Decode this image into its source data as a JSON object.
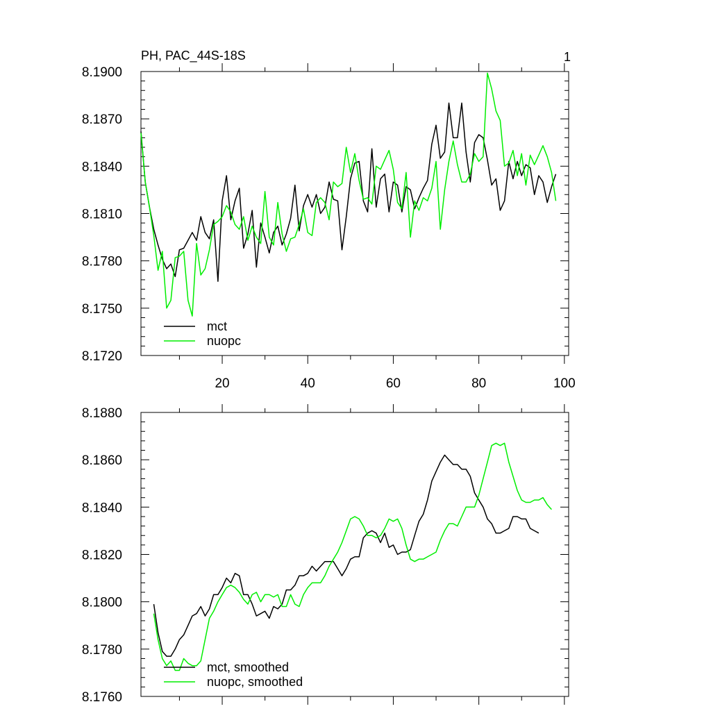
{
  "page": {
    "panel_number": "1"
  },
  "colors": {
    "mct": "#000000",
    "nuopc": "#00ee00",
    "axis": "#000000"
  },
  "chart_data": [
    {
      "type": "line",
      "title": "PH, PAC_44S-18S",
      "xlim": [
        1,
        101
      ],
      "ylim": [
        8.172,
        8.19
      ],
      "x_ticks": [
        20,
        40,
        60,
        80,
        100
      ],
      "y_ticks": [
        8.172,
        8.175,
        8.178,
        8.181,
        8.184,
        8.187,
        8.19
      ],
      "y_tick_labels": [
        "8.1720",
        "8.1750",
        "8.1780",
        "8.1810",
        "8.1840",
        "8.1870",
        "8.1900"
      ],
      "x_tick_labels": [
        "20",
        "40",
        "60",
        "80",
        "100"
      ],
      "legend_position": "bottom-left",
      "series": [
        {
          "name": "mct",
          "color": "#000000",
          "x_start": 1,
          "values": [
            8.1862,
            8.183,
            8.1814,
            8.18,
            8.179,
            8.1781,
            8.1775,
            8.1778,
            8.177,
            8.1787,
            8.1788,
            8.1793,
            8.1798,
            8.1793,
            8.1808,
            8.1798,
            8.1794,
            8.1806,
            8.1767,
            8.1818,
            8.1834,
            8.1806,
            8.1818,
            8.1826,
            8.1788,
            8.1797,
            8.1812,
            8.1776,
            8.1804,
            8.1795,
            8.1785,
            8.1798,
            8.1802,
            8.179,
            8.1797,
            8.1807,
            8.1828,
            8.1799,
            8.1815,
            8.1822,
            8.1814,
            8.1822,
            8.181,
            8.1814,
            8.183,
            8.1819,
            8.1818,
            8.1787,
            8.1808,
            8.1832,
            8.1842,
            8.1843,
            8.1818,
            8.1811,
            8.1851,
            8.1814,
            8.1832,
            8.1835,
            8.1811,
            8.183,
            8.1828,
            8.1811,
            8.1827,
            8.1825,
            8.1813,
            8.182,
            8.1826,
            8.1831,
            8.1854,
            8.1866,
            8.1845,
            8.1849,
            8.188,
            8.1858,
            8.1858,
            8.188,
            8.1849,
            8.183,
            8.1855,
            8.186,
            8.1858,
            8.1844,
            8.1828,
            8.1832,
            8.1812,
            8.1818,
            8.1843,
            8.1832,
            8.1843,
            8.1834,
            8.1841,
            8.1839,
            8.1822,
            8.1834,
            8.183,
            8.1817,
            8.1827,
            8.1835
          ]
        },
        {
          "name": "nuopc",
          "color": "#00ee00",
          "x_start": 1,
          "values": [
            8.1861,
            8.183,
            8.1814,
            8.1796,
            8.1774,
            8.1786,
            8.175,
            8.1755,
            8.1782,
            8.1783,
            8.1786,
            8.1755,
            8.1745,
            8.1791,
            8.1771,
            8.1775,
            8.1787,
            8.1803,
            8.1805,
            8.1808,
            8.1815,
            8.1811,
            8.1803,
            8.18,
            8.1808,
            8.1793,
            8.1802,
            8.1795,
            8.1791,
            8.1824,
            8.1795,
            8.179,
            8.1817,
            8.1797,
            8.1786,
            8.1794,
            8.1795,
            8.1803,
            8.1813,
            8.1798,
            8.1796,
            8.1817,
            8.182,
            8.1817,
            8.1806,
            8.183,
            8.1827,
            8.1829,
            8.1852,
            8.1836,
            8.1848,
            8.1831,
            8.1819,
            8.182,
            8.1816,
            8.184,
            8.1838,
            8.1844,
            8.185,
            8.1838,
            8.1817,
            8.1813,
            8.1836,
            8.1795,
            8.1818,
            8.1812,
            8.182,
            8.1818,
            8.1826,
            8.1843,
            8.18,
            8.1825,
            8.1843,
            8.1856,
            8.1841,
            8.183,
            8.183,
            8.1835,
            8.1848,
            8.1843,
            8.1846,
            8.1899,
            8.1889,
            8.1875,
            8.1869,
            8.184,
            8.1842,
            8.185,
            8.1834,
            8.1848,
            8.1828,
            8.1847,
            8.1841,
            8.1847,
            8.1853,
            8.1846,
            8.1836,
            8.1818
          ]
        }
      ]
    },
    {
      "type": "line",
      "title": "",
      "xlim": [
        1,
        101
      ],
      "ylim": [
        8.176,
        8.188
      ],
      "x_ticks": [
        20,
        40,
        60,
        80,
        100
      ],
      "y_ticks": [
        8.176,
        8.178,
        8.18,
        8.182,
        8.184,
        8.186,
        8.188
      ],
      "y_tick_labels": [
        "8.1760",
        "8.1780",
        "8.1800",
        "8.1820",
        "8.1840",
        "8.1860",
        "8.1880"
      ],
      "legend_position": "bottom-left",
      "series": [
        {
          "name": "mct, smoothed",
          "color": "#000000",
          "x_start": 4,
          "values": [
            8.1799,
            8.1787,
            8.1779,
            8.1777,
            8.1777,
            8.178,
            8.1784,
            8.1786,
            8.179,
            8.1794,
            8.1795,
            8.1798,
            8.1794,
            8.1797,
            8.1803,
            8.1803,
            8.1806,
            8.181,
            8.1808,
            8.1812,
            8.1811,
            8.1803,
            8.1803,
            8.1799,
            8.1794,
            8.1795,
            8.1796,
            8.1793,
            8.1798,
            8.1797,
            8.1799,
            8.1805,
            8.1805,
            8.1807,
            8.1811,
            8.1811,
            8.1812,
            8.1815,
            8.1813,
            8.1815,
            8.1817,
            8.1817,
            8.1817,
            8.1814,
            8.1811,
            8.1814,
            8.1818,
            8.1819,
            8.1819,
            8.1827,
            8.1829,
            8.183,
            8.1829,
            8.1825,
            8.1829,
            8.1823,
            8.1824,
            8.182,
            8.1821,
            8.1821,
            8.1822,
            8.1828,
            8.1834,
            8.1837,
            8.1843,
            8.1851,
            8.1855,
            8.1859,
            8.1862,
            8.186,
            8.1858,
            8.1858,
            8.1856,
            8.1856,
            8.1853,
            8.1846,
            8.1843,
            8.184,
            8.1835,
            8.1833,
            8.1829,
            8.1829,
            8.183,
            8.1831,
            8.1836,
            8.1836,
            8.1835,
            8.1835,
            8.1831,
            8.183,
            8.1829
          ]
        },
        {
          "name": "nuopc, smoothed",
          "color": "#00ee00",
          "x_start": 4,
          "values": [
            8.1795,
            8.1784,
            8.1776,
            8.1773,
            8.1775,
            8.1771,
            8.1771,
            8.1776,
            8.1774,
            8.1773,
            8.1773,
            8.1775,
            8.1784,
            8.1793,
            8.1796,
            8.18,
            8.1803,
            8.1806,
            8.1807,
            8.1806,
            8.1804,
            8.1801,
            8.1799,
            8.1803,
            8.1804,
            8.18,
            8.1803,
            8.1803,
            8.1802,
            8.1803,
            8.1798,
            8.1798,
            8.1803,
            8.1799,
            8.1798,
            8.1803,
            8.1806,
            8.1808,
            8.1808,
            8.1808,
            8.1811,
            8.1815,
            8.1818,
            8.1821,
            8.1825,
            8.183,
            8.1835,
            8.1836,
            8.1835,
            8.1832,
            8.1828,
            8.1828,
            8.1827,
            8.1828,
            8.1831,
            8.1835,
            8.1834,
            8.1835,
            8.1831,
            8.1824,
            8.1818,
            8.1817,
            8.1818,
            8.1818,
            8.1819,
            8.182,
            8.1821,
            8.1826,
            8.183,
            8.1833,
            8.1833,
            8.1832,
            8.1836,
            8.184,
            8.184,
            8.184,
            8.1845,
            8.1852,
            8.1859,
            8.1866,
            8.1867,
            8.1866,
            8.1867,
            8.1859,
            8.1853,
            8.1847,
            8.1843,
            8.1842,
            8.1842,
            8.1843,
            8.1843,
            8.1844,
            8.1841,
            8.1839
          ]
        }
      ]
    }
  ]
}
